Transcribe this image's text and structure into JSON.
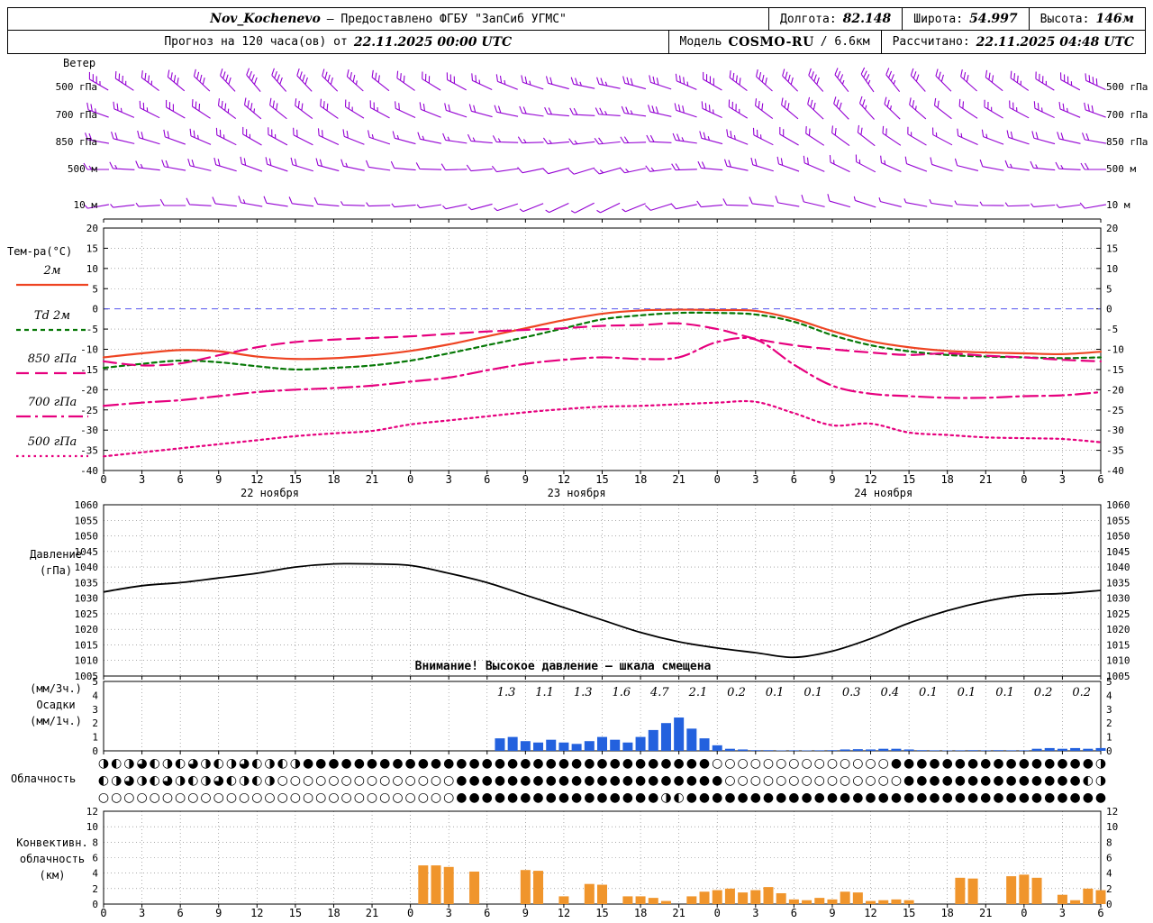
{
  "header": {
    "station": "Nov_Kochenevo",
    "provider": "— Предоставлено ФГБУ \"ЗапСиб УГМС\"",
    "lon_label": "Долгота:",
    "lon_value": "82.148",
    "lat_label": "Широта:",
    "lat_value": "54.997",
    "alt_label": "Высота:",
    "alt_value": "146м",
    "forecast_label": "Прогноз на 120 часа(ов) от",
    "forecast_time": "22.11.2025 00:00 UTC",
    "model_label": "Модель",
    "model_name": "COSMO-RU",
    "model_res": "/ 6.6км",
    "calc_label": "Рассчитано:",
    "calc_time": "22.11.2025 04:48 UTC"
  },
  "chart_data": {
    "type": "meteogram",
    "x_axis": {
      "start_hour": 0,
      "end_hour": 78,
      "step": 3,
      "hour_labels": [
        "0",
        "3",
        "6",
        "9",
        "12",
        "15",
        "18",
        "21",
        "0",
        "3",
        "6",
        "9",
        "12",
        "15",
        "18",
        "21",
        "0",
        "3",
        "6",
        "9",
        "12",
        "15",
        "18",
        "21",
        "0",
        "3",
        "6"
      ],
      "dates": [
        {
          "label": "22 ноября",
          "center_hour": 13
        },
        {
          "label": "23 ноября",
          "center_hour": 37
        },
        {
          "label": "24 ноября",
          "center_hour": 61
        }
      ]
    },
    "wind": {
      "panel_label": "Ветер",
      "color": "#9400d3",
      "levels": [
        "500 гПа",
        "700 гПа",
        "850 гПа",
        "500 м",
        "10 м"
      ],
      "rows": [
        {
          "level": "500 гПа",
          "dirs": [
            300,
            305,
            310,
            315,
            320,
            318,
            315,
            310,
            305,
            300,
            295,
            290,
            285,
            280,
            285,
            290,
            300,
            310,
            315,
            320,
            325,
            320,
            315,
            310,
            305,
            300,
            295
          ],
          "speeds": [
            18,
            18,
            20,
            22,
            22,
            20,
            20,
            18,
            16,
            16,
            14,
            14,
            12,
            14,
            16,
            18,
            20,
            22,
            22,
            20,
            18,
            18,
            16,
            16,
            18,
            18,
            20
          ]
        },
        {
          "level": "700 гПа",
          "dirs": [
            290,
            295,
            300,
            305,
            310,
            308,
            305,
            300,
            295,
            290,
            285,
            280,
            275,
            272,
            278,
            285,
            295,
            305,
            310,
            315,
            318,
            312,
            308,
            302,
            298,
            294,
            290
          ],
          "speeds": [
            14,
            14,
            16,
            18,
            18,
            16,
            16,
            14,
            12,
            12,
            10,
            10,
            10,
            12,
            14,
            16,
            18,
            18,
            16,
            16,
            14,
            14,
            12,
            12,
            14,
            14,
            16
          ]
        },
        {
          "level": "850 гПа",
          "dirs": [
            280,
            285,
            290,
            295,
            300,
            298,
            295,
            290,
            285,
            280,
            275,
            270,
            265,
            262,
            268,
            275,
            285,
            295,
            300,
            305,
            308,
            302,
            298,
            292,
            288,
            284,
            280
          ],
          "speeds": [
            10,
            10,
            12,
            14,
            14,
            12,
            12,
            10,
            8,
            8,
            8,
            8,
            8,
            10,
            12,
            12,
            14,
            14,
            12,
            12,
            10,
            10,
            8,
            8,
            10,
            10,
            12
          ]
        },
        {
          "level": "500 м",
          "dirs": [
            270,
            275,
            280,
            285,
            290,
            288,
            285,
            280,
            275,
            270,
            265,
            260,
            255,
            252,
            258,
            265,
            275,
            285,
            290,
            295,
            298,
            292,
            288,
            282,
            278,
            274,
            270
          ],
          "speeds": [
            8,
            8,
            10,
            10,
            12,
            10,
            10,
            8,
            6,
            6,
            6,
            6,
            6,
            8,
            8,
            10,
            10,
            12,
            10,
            10,
            8,
            8,
            6,
            6,
            8,
            8,
            10
          ]
        },
        {
          "level": "10 м",
          "dirs": [
            260,
            265,
            270,
            275,
            280,
            278,
            275,
            270,
            265,
            260,
            255,
            250,
            245,
            242,
            248,
            255,
            265,
            275,
            280,
            285,
            288,
            282,
            278,
            272,
            268,
            264,
            260
          ],
          "speeds": [
            4,
            4,
            6,
            6,
            8,
            6,
            6,
            4,
            4,
            4,
            3,
            3,
            3,
            4,
            4,
            6,
            6,
            8,
            6,
            6,
            4,
            4,
            3,
            3,
            4,
            4,
            6
          ]
        }
      ]
    },
    "temperature": {
      "panel_label": "Тем-ра(°C)",
      "ylim": [
        -40,
        20
      ],
      "ytick_step": 5,
      "zero_line_color": "#5555ee",
      "series": [
        {
          "label": "2м",
          "color": "#ee4422",
          "style": "solid",
          "values": [
            -12,
            -11,
            -10.2,
            -10.5,
            -11.8,
            -12.4,
            -12.2,
            -11.5,
            -10.4,
            -8.8,
            -6.8,
            -4.8,
            -2.8,
            -1.2,
            -0.4,
            -0.2,
            -0.3,
            -0.5,
            -2.5,
            -5.5,
            -8,
            -9.5,
            -10.4,
            -10.8,
            -11,
            -11.2,
            -10.6
          ]
        },
        {
          "label": "Td 2м",
          "color": "#067806",
          "style": "dash",
          "values": [
            -14.6,
            -13.6,
            -12.8,
            -13.2,
            -14.2,
            -15,
            -14.6,
            -14,
            -12.8,
            -11,
            -9,
            -7,
            -4.8,
            -2.6,
            -1.6,
            -1,
            -1,
            -1.4,
            -3.2,
            -6.5,
            -9,
            -10.5,
            -11.4,
            -11.8,
            -12,
            -12.2,
            -12
          ]
        },
        {
          "label": "850 гПа",
          "color": "#e6007e",
          "style": "longdash",
          "values": [
            -13,
            -14,
            -13.5,
            -11.5,
            -9.5,
            -8.2,
            -7.6,
            -7.2,
            -6.8,
            -6.2,
            -5.6,
            -5.2,
            -4.8,
            -4.2,
            -4,
            -3.6,
            -5,
            -7.4,
            -9,
            -10,
            -10.8,
            -11.4,
            -11,
            -11.6,
            -12,
            -12.6,
            -13
          ]
        },
        {
          "label": "700 гПа",
          "color": "#e6007e",
          "style": "dashdot",
          "values": [
            -24,
            -23.2,
            -22.6,
            -21.6,
            -20.6,
            -20,
            -19.6,
            -19,
            -18,
            -17,
            -15.2,
            -13.6,
            -12.6,
            -12,
            -12.4,
            -12,
            -8.2,
            -7.6,
            -13.8,
            -19,
            -21,
            -21.6,
            -22,
            -22,
            -21.6,
            -21.4,
            -20.6
          ]
        },
        {
          "label": "500 гПа",
          "color": "#e6007e",
          "style": "dot",
          "values": [
            -36.5,
            -35.5,
            -34.5,
            -33.5,
            -32.5,
            -31.5,
            -30.8,
            -30.2,
            -28.6,
            -27.6,
            -26.6,
            -25.6,
            -24.8,
            -24.2,
            -24,
            -23.6,
            -23.2,
            -23,
            -25.8,
            -28.8,
            -28.4,
            -30.6,
            -31.2,
            -31.8,
            -32,
            -32.2,
            -33
          ]
        }
      ]
    },
    "pressure": {
      "label_lines": [
        "Давление",
        "(гПа)"
      ],
      "ylim": [
        1005,
        1060
      ],
      "ytick_step": 5,
      "color": "#000000",
      "annotation": "Внимание! Высокое давление — шкала смещена",
      "values": [
        1032,
        1034,
        1035,
        1036.5,
        1038,
        1040,
        1041,
        1041,
        1040.5,
        1038,
        1035,
        1031,
        1027,
        1023,
        1019,
        1016,
        1014,
        1012.5,
        1011,
        1013,
        1017,
        1022,
        1026,
        1029,
        1031,
        1031.5,
        1032.5
      ]
    },
    "precipitation": {
      "label_lines": [
        "(мм/3ч.)",
        "Осадки",
        "(мм/1ч.)"
      ],
      "ylim": [
        0,
        5
      ],
      "ytick_step": 1,
      "bar_color": "#2361de",
      "labels_3h": {
        "start_hour": 33,
        "step": 3,
        "values": [
          "1.3",
          "1.1",
          "1.3",
          "1.6",
          "4.7",
          "2.1",
          "0.2",
          "0.1",
          "0.1",
          "0.3",
          "0.4",
          "0.1",
          "0.1",
          "0.1",
          "0.2",
          "0.2"
        ]
      },
      "hourly": [
        0,
        0,
        0,
        0,
        0,
        0,
        0,
        0,
        0,
        0,
        0,
        0,
        0,
        0,
        0,
        0,
        0,
        0,
        0,
        0,
        0,
        0,
        0,
        0,
        0,
        0,
        0,
        0,
        0,
        0,
        0,
        0.9,
        1.0,
        0.7,
        0.6,
        0.8,
        0.6,
        0.5,
        0.7,
        1.0,
        0.8,
        0.6,
        1.0,
        1.5,
        2.0,
        2.4,
        1.6,
        0.9,
        0.4,
        0.15,
        0.1,
        0.05,
        0.05,
        0.03,
        0.04,
        0.03,
        0.04,
        0.05,
        0.1,
        0.12,
        0.1,
        0.15,
        0.15,
        0.1,
        0.05,
        0.04,
        0.03,
        0.04,
        0.05,
        0.04,
        0.05,
        0.04,
        0.04,
        0.15,
        0.2,
        0.15,
        0.2,
        0.15,
        0.2
      ]
    },
    "cloudiness": {
      "panel_label": "Облачность",
      "rows": [
        "◑◐◑◕◐◑◐◕◑◐◑◕◐◑◐◑●●●●●●●●●●●●●●●●●●●●●●●●●●●●●●●●○○○○○○○○○○○○○○●●●●●●●●●●●●●●●●◑",
        "◐◑◕◑◐◕◑◐◑◕◐◑◐◑○○○○○○○○○○○○○○●●●●●●●●●●●●●●●●●●●●●○○○○○○○○○○○○○○●●●●●●●●●●●●●●◐◑",
        "○○○○○○○○○○○○○○○○○○○○○○○○○○○○●●●●●●●●●●●●●●●●◑◐●●●●●●●●●●●●●●●●●●●●●●●●●●●●●●●●●"
      ]
    },
    "convective": {
      "label_lines": [
        "Конвективн.",
        "облачность",
        "(км)"
      ],
      "ylim": [
        0,
        12
      ],
      "yticks": [
        0,
        2,
        4,
        6,
        8,
        10,
        12
      ],
      "bar_color": "#f0952c",
      "hourly": [
        0,
        0,
        0,
        0,
        0,
        0,
        0,
        0,
        0,
        0,
        0,
        0,
        0,
        0,
        0,
        0,
        0,
        0,
        0,
        0,
        0,
        0,
        0,
        0,
        0,
        5,
        5,
        4.8,
        0,
        4.2,
        0,
        0,
        0,
        4.4,
        4.3,
        0,
        1.0,
        0,
        2.6,
        2.5,
        0,
        1.0,
        1.0,
        0.8,
        0.4,
        0,
        1.0,
        1.6,
        1.8,
        2.0,
        1.5,
        1.8,
        2.2,
        1.4,
        0.6,
        0.5,
        0.8,
        0.6,
        1.6,
        1.5,
        0.4,
        0.5,
        0.6,
        0.5,
        0,
        0,
        0,
        3.4,
        3.3,
        0,
        0,
        3.6,
        3.8,
        3.4,
        0,
        1.2,
        0.5,
        2.0,
        1.8
      ]
    }
  }
}
